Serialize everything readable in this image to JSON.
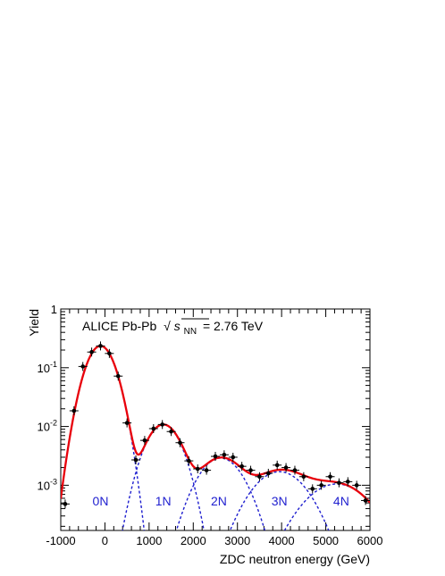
{
  "chart_data": {
    "type": "scatter",
    "title": "",
    "xlabel": "ZDC neutron energy (GeV)",
    "ylabel": "Yield",
    "xlim": [
      -1000,
      6000
    ],
    "ylim": [
      0.00017,
      1
    ],
    "yscale": "log",
    "grid": false,
    "legend": "none",
    "xticks": [
      -1000,
      0,
      1000,
      2000,
      3000,
      4000,
      5000,
      6000
    ],
    "xtick_labels": [
      "-1000",
      "0",
      "1000",
      "2000",
      "3000",
      "4000",
      "5000",
      "6000"
    ],
    "yticks": [
      {
        "value": 1,
        "base": "1",
        "exp": ""
      },
      {
        "value": 0.1,
        "base": "10",
        "exp": "-1"
      },
      {
        "value": 0.01,
        "base": "10",
        "exp": "-2"
      },
      {
        "value": 0.001,
        "base": "10",
        "exp": "-3"
      }
    ],
    "annotation": {
      "prefix": "ALICE Pb-Pb",
      "sqrt_symbol": "√",
      "s_label": "s",
      "s_sub": "NN",
      "suffix": "= 2.76 TeV"
    },
    "peak_labels": [
      {
        "text": "0N",
        "x": -100
      },
      {
        "text": "1N",
        "x": 1320
      },
      {
        "text": "2N",
        "x": 2580
      },
      {
        "text": "3N",
        "x": 3950
      },
      {
        "text": "4N",
        "x": 5350
      }
    ],
    "colors": {
      "data": "#000000",
      "fit": "#e8000b",
      "components": "#1f1fcf",
      "peak_labels": "#1f1fcf"
    },
    "components": [
      {
        "mean": -100,
        "sigma": 260,
        "amp": 0.235
      },
      {
        "mean": 1320,
        "sigma": 320,
        "amp": 0.0108
      },
      {
        "mean": 2620,
        "sigma": 420,
        "amp": 0.0029
      },
      {
        "mean": 3950,
        "sigma": 520,
        "amp": 0.0017
      },
      {
        "mean": 5250,
        "sigma": 620,
        "amp": 0.00105
      }
    ],
    "series": [
      {
        "name": "",
        "x": [
          -900,
          -700,
          -500,
          -300,
          -100,
          100,
          300,
          500,
          700,
          900,
          1100,
          1300,
          1500,
          1700,
          1900,
          2100,
          2300,
          2500,
          2700,
          2900,
          3100,
          3300,
          3500,
          3700,
          3900,
          4100,
          4300,
          4500,
          4700,
          4900,
          5100,
          5300,
          5500,
          5700,
          5900
        ],
        "y": [
          0.00048,
          0.0185,
          0.105,
          0.185,
          0.235,
          0.175,
          0.072,
          0.0115,
          0.0027,
          0.0058,
          0.0092,
          0.0108,
          0.0082,
          0.0053,
          0.0026,
          0.0019,
          0.0018,
          0.0031,
          0.0033,
          0.003,
          0.0021,
          0.0018,
          0.0014,
          0.0016,
          0.0022,
          0.002,
          0.0018,
          0.0014,
          0.00087,
          0.001,
          0.0014,
          0.0011,
          0.00115,
          0.001,
          0.00055
        ]
      }
    ]
  }
}
